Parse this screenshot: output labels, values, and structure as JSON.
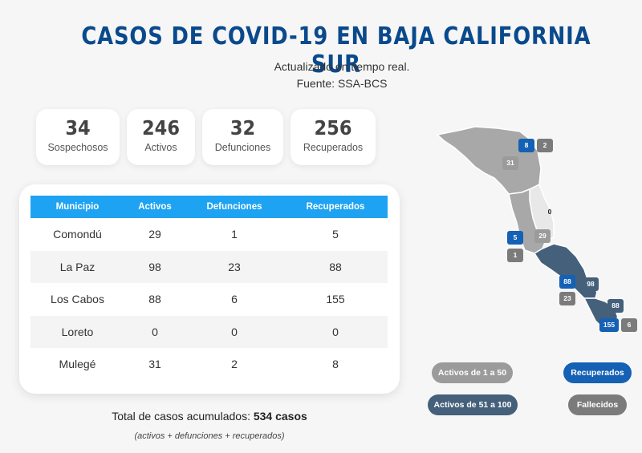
{
  "header": {
    "title": "CASOS DE COVID-19 EN BAJA CALIFORNIA SUR",
    "updated": "Actualizado en tiempo real.",
    "source": "Fuente: SSA-BCS"
  },
  "stats": [
    {
      "value": "34",
      "label": "Sospechosos"
    },
    {
      "value": "246",
      "label": "Activos"
    },
    {
      "value": "32",
      "label": "Defunciones"
    },
    {
      "value": "256",
      "label": "Recuperados"
    }
  ],
  "table": {
    "headers": [
      "Municipio",
      "Activos",
      "Defunciones",
      "Recuperados"
    ],
    "rows": [
      [
        "Comondú",
        "29",
        "1",
        "5"
      ],
      [
        "La Paz",
        "98",
        "23",
        "88"
      ],
      [
        "Los Cabos",
        "88",
        "6",
        "155"
      ],
      [
        "Loreto",
        "0",
        "0",
        "0"
      ],
      [
        "Mulegé",
        "31",
        "2",
        "8"
      ]
    ]
  },
  "total": {
    "label": "Total de casos acumulados:",
    "value": "534 casos",
    "note": "(activos + defunciones + recuperados)"
  },
  "map": {
    "badges": [
      "8",
      "2",
      "31",
      "0",
      "5",
      "29",
      "1",
      "88",
      "98",
      "23",
      "88",
      "155",
      "6"
    ]
  },
  "legend": {
    "range_low": "Activos de 1 a 50",
    "range_high": "Activos de 51 a 100",
    "recovered": "Recuperados",
    "deceased": "Fallecidos"
  },
  "colors": {
    "title": "#0a4a8c",
    "header_bg": "#1ea3f2",
    "active_low": "#9b9b9b",
    "active_high": "#44607a",
    "recovered": "#1461b5",
    "deceased": "#7b7b7b"
  }
}
